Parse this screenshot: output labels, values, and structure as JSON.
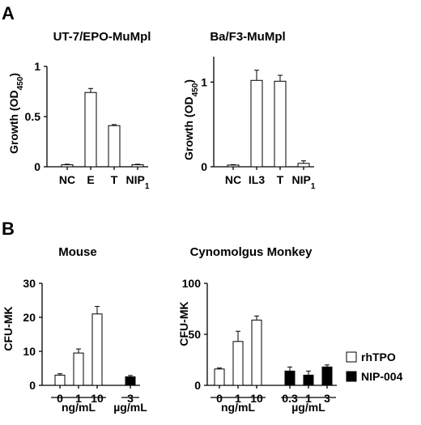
{
  "panels": [
    {
      "letter": "A"
    },
    {
      "letter": "B"
    }
  ],
  "legend": {
    "items": [
      {
        "label": "rhTPO",
        "fill": "#ffffff"
      },
      {
        "label": "NIP-004",
        "fill": "#000000"
      }
    ]
  },
  "chart_data": [
    {
      "type": "bar",
      "title": "UT-7/EPO-MuMpl",
      "ylabel": "Growth (OD450)",
      "ylim": [
        0,
        1
      ],
      "yticks": [
        "0",
        "0.5",
        "1"
      ],
      "yticks_values": [
        0,
        0.5,
        1
      ],
      "categories": [
        "NC",
        "E",
        "T",
        "NIP1"
      ],
      "values": [
        0.02,
        0.74,
        0.41,
        0.02
      ],
      "errors": [
        0.005,
        0.04,
        0.01,
        0.005
      ],
      "fills": [
        "#ffffff",
        "#ffffff",
        "#ffffff",
        "#ffffff"
      ]
    },
    {
      "type": "bar",
      "title": "Ba/F3-MuMpl",
      "ylabel": "Growth (OD450)",
      "ylim": [
        0,
        1.3
      ],
      "yticks": [
        "0",
        "1"
      ],
      "yticks_values": [
        0,
        1
      ],
      "categories": [
        "NC",
        "IL3",
        "T",
        "NIP1"
      ],
      "values": [
        0.02,
        1.02,
        1.01,
        0.04
      ],
      "errors": [
        0.005,
        0.12,
        0.07,
        0.03
      ],
      "fills": [
        "#ffffff",
        "#ffffff",
        "#ffffff",
        "#ffffff"
      ]
    },
    {
      "type": "bar",
      "title": "Mouse",
      "ylabel": "CFU-MK",
      "ylim": [
        0,
        30
      ],
      "yticks": [
        "0",
        "10",
        "20",
        "30"
      ],
      "yticks_values": [
        0,
        10,
        20,
        30
      ],
      "categories": [
        "0",
        "1",
        "10",
        "3"
      ],
      "values": [
        3,
        9.5,
        21,
        2.5
      ],
      "errors": [
        0.4,
        1.2,
        2.2,
        0.4
      ],
      "fills": [
        "#ffffff",
        "#ffffff",
        "#ffffff",
        "#000000"
      ],
      "groups": [
        {
          "label": "ng/mL",
          "from": 0,
          "to": 2
        },
        {
          "label": "µg/mL",
          "from": 3,
          "to": 3
        }
      ]
    },
    {
      "type": "bar",
      "title": "Cynomolgus Monkey",
      "ylabel": "CFU-MK",
      "ylim": [
        0,
        100
      ],
      "yticks": [
        "0",
        "50",
        "100"
      ],
      "yticks_values": [
        0,
        50,
        100
      ],
      "categories": [
        "0",
        "1",
        "10",
        "0.3",
        "1",
        "3"
      ],
      "values": [
        16,
        43,
        64,
        14,
        10,
        18
      ],
      "errors": [
        1,
        10,
        4,
        4,
        4,
        2
      ],
      "fills": [
        "#ffffff",
        "#ffffff",
        "#ffffff",
        "#000000",
        "#000000",
        "#000000"
      ],
      "groups": [
        {
          "label": "ng/mL",
          "from": 0,
          "to": 2
        },
        {
          "label": "µg/mL",
          "from": 3,
          "to": 5
        }
      ]
    }
  ]
}
